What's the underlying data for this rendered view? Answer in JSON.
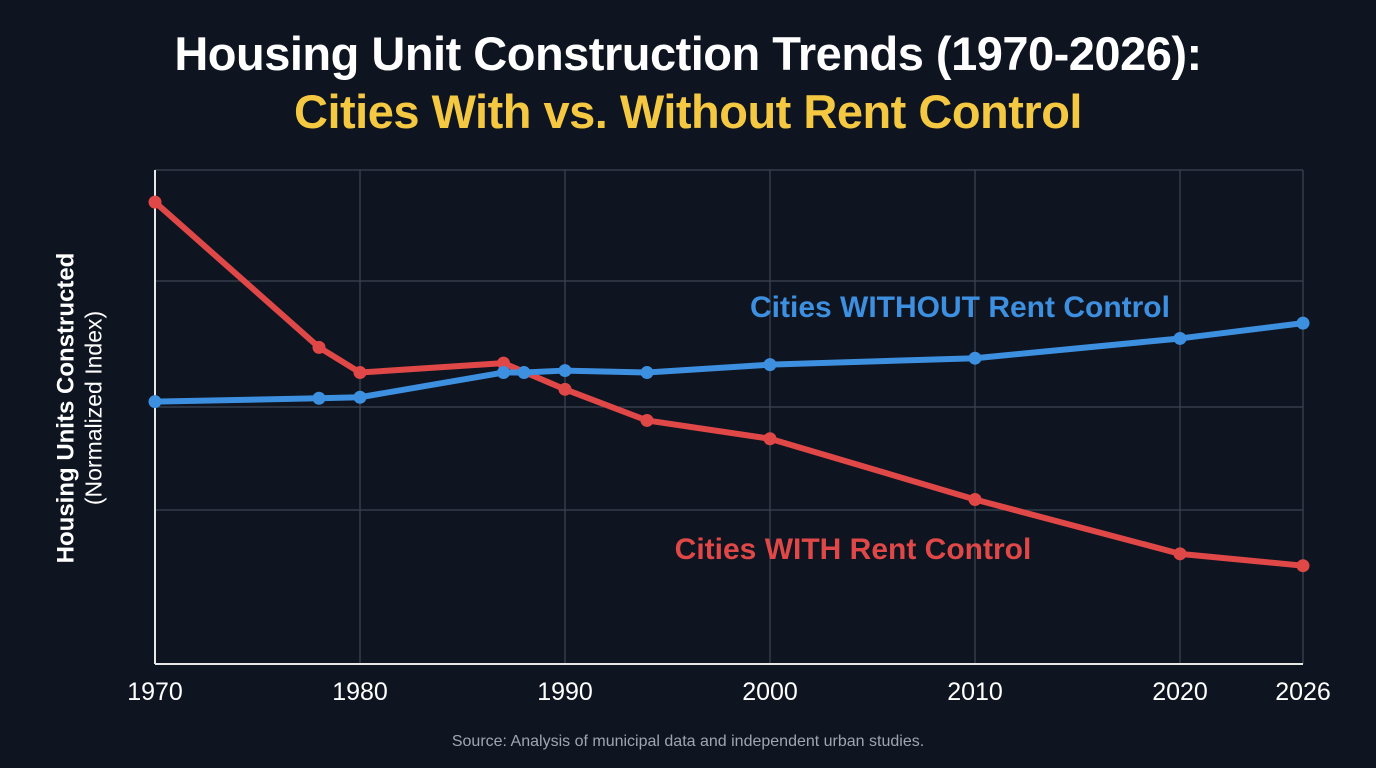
{
  "chart_data": {
    "type": "line",
    "title": "Housing Unit Construction Trends (1970-2026):",
    "subtitle": "Cities With vs. Without Rent Control",
    "ylabel": "Housing Units Constructed",
    "ylabel_sub": "(Normalized Index)",
    "xlabel": "",
    "x_ticks": [
      "1970",
      "1980",
      "1990",
      "2000",
      "2010",
      "2020",
      "2026"
    ],
    "xlim": [
      1970,
      2026
    ],
    "ylim": [
      0,
      100
    ],
    "y_ticks_labeled": false,
    "grid": true,
    "legend": "inline labels",
    "series": [
      {
        "name": "Cities WITHOUT Rent Control",
        "color": "#3d8fe0",
        "x": [
          1970,
          1978,
          1980,
          1987,
          1988,
          1990,
          1994,
          2000,
          2010,
          2020,
          2026
        ],
        "y": [
          53.1,
          53.8,
          54.0,
          59.0,
          59.0,
          59.4,
          59.0,
          60.6,
          61.9,
          65.9,
          69.0
        ]
      },
      {
        "name": "Cities WITH Rent Control",
        "color": "#e04848",
        "x": [
          1970,
          1978,
          1980,
          1987,
          1990,
          1994,
          2000,
          2010,
          2020,
          2026
        ],
        "y": [
          93.5,
          64.1,
          59.0,
          60.9,
          55.6,
          49.3,
          45.6,
          33.3,
          22.3,
          19.9
        ]
      }
    ],
    "source": "Source: Analysis of municipal data and independent urban studies."
  },
  "colors": {
    "background": "#0e1420",
    "title": "#ffffff",
    "subtitle": "#f5c842"
  }
}
